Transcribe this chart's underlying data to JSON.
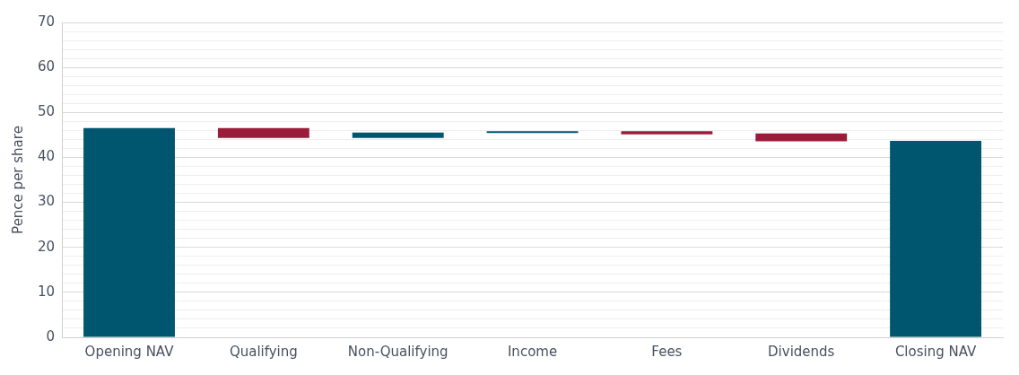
{
  "chart_data": {
    "type": "bar",
    "ylabel": "Pence per share",
    "categories": [
      "Opening NAV",
      "Qualifying",
      "Non-Qualifying",
      "Income",
      "Fees",
      "Dividends",
      "Closing NAV"
    ],
    "values": [
      46.5,
      2.2,
      1.2,
      0.4,
      0.7,
      1.7,
      43.7
    ],
    "base": [
      0,
      44.3,
      44.3,
      45.4,
      45.1,
      43.6,
      0
    ],
    "colors": [
      "#00566f",
      "#9b1c3a",
      "#00566f",
      "#00566f",
      "#9b1c3a",
      "#9b1c3a",
      "#00566f"
    ],
    "ylim": [
      0,
      70
    ],
    "yticks": [
      0,
      {
        "value": 2,
        "label": null
      },
      {
        "value": 4,
        "label": null
      },
      {
        "value": 6,
        "label": null
      },
      {
        "value": 8,
        "label": null
      },
      10,
      {
        "value": 12,
        "label": null
      },
      {
        "value": 14,
        "label": null
      },
      {
        "value": 16,
        "label": null
      },
      {
        "value": 18,
        "label": null
      },
      20,
      {
        "value": 22,
        "label": null
      },
      {
        "value": 24,
        "label": null
      },
      {
        "value": 26,
        "label": null
      },
      {
        "value": 28,
        "label": null
      },
      30,
      {
        "value": 32,
        "label": null
      },
      {
        "value": 34,
        "label": null
      },
      {
        "value": 36,
        "label": null
      },
      {
        "value": 38,
        "label": null
      },
      40,
      {
        "value": 42,
        "label": null
      },
      {
        "value": 44,
        "label": null
      },
      {
        "value": 46,
        "label": null
      },
      {
        "value": 48,
        "label": null
      },
      50,
      {
        "value": 52,
        "label": null
      },
      {
        "value": 54,
        "label": null
      },
      {
        "value": 56,
        "label": null
      },
      {
        "value": 58,
        "label": null
      },
      60,
      {
        "value": 62,
        "label": null
      },
      {
        "value": 64,
        "label": null
      },
      {
        "value": 66,
        "label": null
      },
      {
        "value": 68,
        "label": null
      },
      70
    ],
    "grid": "y",
    "legend": false
  }
}
